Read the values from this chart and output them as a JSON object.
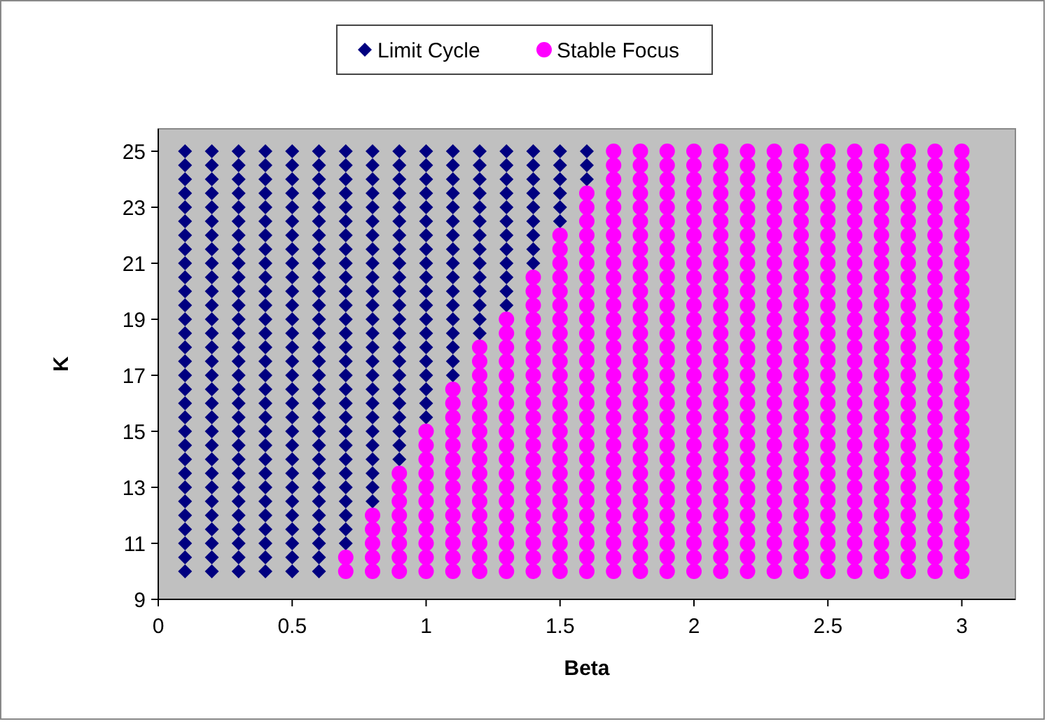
{
  "chart_data": {
    "type": "scatter",
    "xlabel": "Beta",
    "ylabel": "K",
    "xlim": [
      0,
      3.2
    ],
    "xticks": [
      0,
      0.5,
      1,
      1.5,
      2,
      2.5,
      3
    ],
    "ylim": [
      9,
      25.8
    ],
    "yticks": [
      9,
      11,
      13,
      15,
      17,
      19,
      21,
      23,
      25
    ],
    "grid": false,
    "legend": "top",
    "series": [
      {
        "name": "Limit Cycle",
        "color": "#000080",
        "marker": "diamond",
        "x": [
          0.1,
          0.1,
          0.1,
          0.1,
          0.1,
          0.1,
          0.1,
          0.1,
          0.1,
          0.1,
          0.1,
          0.1,
          0.1,
          0.1,
          0.1,
          0.1,
          0.1,
          0.1,
          0.1,
          0.1,
          0.1,
          0.1,
          0.1,
          0.1,
          0.1,
          0.1,
          0.1,
          0.1,
          0.1,
          0.1,
          0.1,
          0.2,
          0.2,
          0.2,
          0.2,
          0.2,
          0.2,
          0.2,
          0.2,
          0.2,
          0.2,
          0.2,
          0.2,
          0.2,
          0.2,
          0.2,
          0.2,
          0.2,
          0.2,
          0.2,
          0.2,
          0.2,
          0.2,
          0.2,
          0.2,
          0.2,
          0.2,
          0.2,
          0.2,
          0.2,
          0.2,
          0.2,
          0.3,
          0.3,
          0.3,
          0.3,
          0.3,
          0.3,
          0.3,
          0.3,
          0.3,
          0.3,
          0.3,
          0.3,
          0.3,
          0.3,
          0.3,
          0.3,
          0.3,
          0.3,
          0.3,
          0.3,
          0.3,
          0.3,
          0.3,
          0.3,
          0.3,
          0.3,
          0.3,
          0.3,
          0.3,
          0.3,
          0.3,
          0.4,
          0.4,
          0.4,
          0.4,
          0.4,
          0.4,
          0.4,
          0.4,
          0.4,
          0.4,
          0.4,
          0.4,
          0.4,
          0.4,
          0.4,
          0.4,
          0.4,
          0.4,
          0.4,
          0.4,
          0.4,
          0.4,
          0.4,
          0.4,
          0.4,
          0.4,
          0.4,
          0.4,
          0.4,
          0.4,
          0.4,
          0.5,
          0.5,
          0.5,
          0.5,
          0.5,
          0.5,
          0.5,
          0.5,
          0.5,
          0.5,
          0.5,
          0.5,
          0.5,
          0.5,
          0.5,
          0.5,
          0.5,
          0.5,
          0.5,
          0.5,
          0.5,
          0.5,
          0.5,
          0.5,
          0.5,
          0.5,
          0.5,
          0.5,
          0.5,
          0.5,
          0.5,
          0.6,
          0.6,
          0.6,
          0.6,
          0.6,
          0.6,
          0.6,
          0.6,
          0.6,
          0.6,
          0.6,
          0.6,
          0.6,
          0.6,
          0.6,
          0.6,
          0.6,
          0.6,
          0.6,
          0.6,
          0.6,
          0.6,
          0.6,
          0.6,
          0.6,
          0.6,
          0.6,
          0.6,
          0.6,
          0.6,
          0.6,
          0.7,
          0.7,
          0.7,
          0.7,
          0.7,
          0.7,
          0.7,
          0.7,
          0.7,
          0.7,
          0.7,
          0.7,
          0.7,
          0.7,
          0.7,
          0.7,
          0.7,
          0.7,
          0.7,
          0.7,
          0.7,
          0.7,
          0.7,
          0.7,
          0.7,
          0.7,
          0.7,
          0.7,
          0.7,
          0.8,
          0.8,
          0.8,
          0.8,
          0.8,
          0.8,
          0.8,
          0.8,
          0.8,
          0.8,
          0.8,
          0.8,
          0.8,
          0.8,
          0.8,
          0.8,
          0.8,
          0.8,
          0.8,
          0.8,
          0.8,
          0.8,
          0.8,
          0.8,
          0.8,
          0.8,
          0.9,
          0.9,
          0.9,
          0.9,
          0.9,
          0.9,
          0.9,
          0.9,
          0.9,
          0.9,
          0.9,
          0.9,
          0.9,
          0.9,
          0.9,
          0.9,
          0.9,
          0.9,
          0.9,
          0.9,
          0.9,
          0.9,
          0.9,
          1,
          1,
          1,
          1,
          1,
          1,
          1,
          1,
          1,
          1,
          1,
          1,
          1,
          1,
          1,
          1,
          1,
          1,
          1,
          1,
          1.1,
          1.1,
          1.1,
          1.1,
          1.1,
          1.1,
          1.1,
          1.1,
          1.1,
          1.1,
          1.1,
          1.1,
          1.1,
          1.1,
          1.1,
          1.1,
          1.1,
          1.2,
          1.2,
          1.2,
          1.2,
          1.2,
          1.2,
          1.2,
          1.2,
          1.2,
          1.2,
          1.2,
          1.2,
          1.2,
          1.2,
          1.3,
          1.3,
          1.3,
          1.3,
          1.3,
          1.3,
          1.3,
          1.3,
          1.3,
          1.3,
          1.3,
          1.3,
          1.4,
          1.4,
          1.4,
          1.4,
          1.4,
          1.4,
          1.4,
          1.4,
          1.4,
          1.5,
          1.5,
          1.5,
          1.5,
          1.5,
          1.5,
          1.6,
          1.6,
          1.6
        ],
        "values": [
          10,
          10.5,
          11,
          11.5,
          12,
          12.5,
          13,
          13.5,
          14,
          14.5,
          15,
          15.5,
          16,
          16.5,
          17,
          17.5,
          18,
          18.5,
          19,
          19.5,
          20,
          20.5,
          21,
          21.5,
          22,
          22.5,
          23,
          23.5,
          24,
          24.5,
          25,
          10,
          10.5,
          11,
          11.5,
          12,
          12.5,
          13,
          13.5,
          14,
          14.5,
          15,
          15.5,
          16,
          16.5,
          17,
          17.5,
          18,
          18.5,
          19,
          19.5,
          20,
          20.5,
          21,
          21.5,
          22,
          22.5,
          23,
          23.5,
          24,
          24.5,
          25,
          10,
          10.5,
          11,
          11.5,
          12,
          12.5,
          13,
          13.5,
          14,
          14.5,
          15,
          15.5,
          16,
          16.5,
          17,
          17.5,
          18,
          18.5,
          19,
          19.5,
          20,
          20.5,
          21,
          21.5,
          22,
          22.5,
          23,
          23.5,
          24,
          24.5,
          25,
          10,
          10.5,
          11,
          11.5,
          12,
          12.5,
          13,
          13.5,
          14,
          14.5,
          15,
          15.5,
          16,
          16.5,
          17,
          17.5,
          18,
          18.5,
          19,
          19.5,
          20,
          20.5,
          21,
          21.5,
          22,
          22.5,
          23,
          23.5,
          24,
          24.5,
          25,
          10,
          10.5,
          11,
          11.5,
          12,
          12.5,
          13,
          13.5,
          14,
          14.5,
          15,
          15.5,
          16,
          16.5,
          17,
          17.5,
          18,
          18.5,
          19,
          19.5,
          20,
          20.5,
          21,
          21.5,
          22,
          22.5,
          23,
          23.5,
          24,
          24.5,
          25,
          10,
          10.5,
          11,
          11.5,
          12,
          12.5,
          13,
          13.5,
          14,
          14.5,
          15,
          15.5,
          16,
          16.5,
          17,
          17.5,
          18,
          18.5,
          19,
          19.5,
          20,
          20.5,
          21,
          21.5,
          22,
          22.5,
          23,
          23.5,
          24,
          24.5,
          25,
          11,
          11.5,
          12,
          12.5,
          13,
          13.5,
          14,
          14.5,
          15,
          15.5,
          16,
          16.5,
          17,
          17.5,
          18,
          18.5,
          19,
          19.5,
          20,
          20.5,
          21,
          21.5,
          22,
          22.5,
          23,
          23.5,
          24,
          24.5,
          25,
          12.5,
          13,
          13.5,
          14,
          14.5,
          15,
          15.5,
          16,
          16.5,
          17,
          17.5,
          18,
          18.5,
          19,
          19.5,
          20,
          20.5,
          21,
          21.5,
          22,
          22.5,
          23,
          23.5,
          24,
          24.5,
          25,
          14,
          14.5,
          15,
          15.5,
          16,
          16.5,
          17,
          17.5,
          18,
          18.5,
          19,
          19.5,
          20,
          20.5,
          21,
          21.5,
          22,
          22.5,
          23,
          23.5,
          24,
          24.5,
          25,
          15.5,
          16,
          16.5,
          17,
          17.5,
          18,
          18.5,
          19,
          19.5,
          20,
          20.5,
          21,
          21.5,
          22,
          22.5,
          23,
          23.5,
          24,
          24.5,
          25,
          17,
          17.5,
          18,
          18.5,
          19,
          19.5,
          20,
          20.5,
          21,
          21.5,
          22,
          22.5,
          23,
          23.5,
          24,
          24.5,
          25,
          18.5,
          19,
          19.5,
          20,
          20.5,
          21,
          21.5,
          22,
          22.5,
          23,
          23.5,
          24,
          24.5,
          25,
          19.5,
          20,
          20.5,
          21,
          21.5,
          22,
          22.5,
          23,
          23.5,
          24,
          24.5,
          25,
          21,
          21.5,
          22,
          22.5,
          23,
          23.5,
          24,
          24.5,
          25,
          22.5,
          23,
          23.5,
          24,
          24.5,
          25,
          24,
          24.5,
          25
        ]
      },
      {
        "name": "Stable Focus",
        "color": "#ff00ff",
        "marker": "circle",
        "x": [
          0.7,
          0.7,
          0.8,
          0.8,
          0.8,
          0.8,
          0.8,
          0.9,
          0.9,
          0.9,
          0.9,
          0.9,
          0.9,
          0.9,
          0.9,
          1,
          1,
          1,
          1,
          1,
          1,
          1,
          1,
          1,
          1,
          1,
          1.1,
          1.1,
          1.1,
          1.1,
          1.1,
          1.1,
          1.1,
          1.1,
          1.1,
          1.1,
          1.1,
          1.1,
          1.1,
          1.1,
          1.2,
          1.2,
          1.2,
          1.2,
          1.2,
          1.2,
          1.2,
          1.2,
          1.2,
          1.2,
          1.2,
          1.2,
          1.2,
          1.2,
          1.2,
          1.2,
          1.2,
          1.3,
          1.3,
          1.3,
          1.3,
          1.3,
          1.3,
          1.3,
          1.3,
          1.3,
          1.3,
          1.3,
          1.3,
          1.3,
          1.3,
          1.3,
          1.3,
          1.3,
          1.3,
          1.3,
          1.4,
          1.4,
          1.4,
          1.4,
          1.4,
          1.4,
          1.4,
          1.4,
          1.4,
          1.4,
          1.4,
          1.4,
          1.4,
          1.4,
          1.4,
          1.4,
          1.4,
          1.4,
          1.4,
          1.4,
          1.4,
          1.4,
          1.5,
          1.5,
          1.5,
          1.5,
          1.5,
          1.5,
          1.5,
          1.5,
          1.5,
          1.5,
          1.5,
          1.5,
          1.5,
          1.5,
          1.5,
          1.5,
          1.5,
          1.5,
          1.5,
          1.5,
          1.5,
          1.5,
          1.5,
          1.5,
          1.5,
          1.6,
          1.6,
          1.6,
          1.6,
          1.6,
          1.6,
          1.6,
          1.6,
          1.6,
          1.6,
          1.6,
          1.6,
          1.6,
          1.6,
          1.6,
          1.6,
          1.6,
          1.6,
          1.6,
          1.6,
          1.6,
          1.6,
          1.6,
          1.6,
          1.6,
          1.6,
          1.6,
          1.6,
          1.7,
          1.7,
          1.7,
          1.7,
          1.7,
          1.7,
          1.7,
          1.7,
          1.7,
          1.7,
          1.7,
          1.7,
          1.7,
          1.7,
          1.7,
          1.7,
          1.7,
          1.7,
          1.7,
          1.7,
          1.7,
          1.7,
          1.7,
          1.7,
          1.7,
          1.7,
          1.7,
          1.7,
          1.7,
          1.7,
          1.7,
          1.8,
          1.8,
          1.8,
          1.8,
          1.8,
          1.8,
          1.8,
          1.8,
          1.8,
          1.8,
          1.8,
          1.8,
          1.8,
          1.8,
          1.8,
          1.8,
          1.8,
          1.8,
          1.8,
          1.8,
          1.8,
          1.8,
          1.8,
          1.8,
          1.8,
          1.8,
          1.8,
          1.8,
          1.8,
          1.8,
          1.8,
          1.9,
          1.9,
          1.9,
          1.9,
          1.9,
          1.9,
          1.9,
          1.9,
          1.9,
          1.9,
          1.9,
          1.9,
          1.9,
          1.9,
          1.9,
          1.9,
          1.9,
          1.9,
          1.9,
          1.9,
          1.9,
          1.9,
          1.9,
          1.9,
          1.9,
          1.9,
          1.9,
          1.9,
          1.9,
          1.9,
          1.9,
          2,
          2,
          2,
          2,
          2,
          2,
          2,
          2,
          2,
          2,
          2,
          2,
          2,
          2,
          2,
          2,
          2,
          2,
          2,
          2,
          2,
          2,
          2,
          2,
          2,
          2,
          2,
          2,
          2,
          2,
          2,
          2.1,
          2.1,
          2.1,
          2.1,
          2.1,
          2.1,
          2.1,
          2.1,
          2.1,
          2.1,
          2.1,
          2.1,
          2.1,
          2.1,
          2.1,
          2.1,
          2.1,
          2.1,
          2.1,
          2.1,
          2.1,
          2.1,
          2.1,
          2.1,
          2.1,
          2.1,
          2.1,
          2.1,
          2.1,
          2.1,
          2.1,
          2.2,
          2.2,
          2.2,
          2.2,
          2.2,
          2.2,
          2.2,
          2.2,
          2.2,
          2.2,
          2.2,
          2.2,
          2.2,
          2.2,
          2.2,
          2.2,
          2.2,
          2.2,
          2.2,
          2.2,
          2.2,
          2.2,
          2.2,
          2.2,
          2.2,
          2.2,
          2.2,
          2.2,
          2.2,
          2.2,
          2.2,
          2.3,
          2.3,
          2.3,
          2.3,
          2.3,
          2.3,
          2.3,
          2.3,
          2.3,
          2.3,
          2.3,
          2.3,
          2.3,
          2.3,
          2.3,
          2.3,
          2.3,
          2.3,
          2.3,
          2.3,
          2.3,
          2.3,
          2.3,
          2.3,
          2.3,
          2.3,
          2.3,
          2.3,
          2.3,
          2.3,
          2.3,
          2.4,
          2.4,
          2.4,
          2.4,
          2.4,
          2.4,
          2.4,
          2.4,
          2.4,
          2.4,
          2.4,
          2.4,
          2.4,
          2.4,
          2.4,
          2.4,
          2.4,
          2.4,
          2.4,
          2.4,
          2.4,
          2.4,
          2.4,
          2.4,
          2.4,
          2.4,
          2.4,
          2.4,
          2.4,
          2.4,
          2.4,
          2.5,
          2.5,
          2.5,
          2.5,
          2.5,
          2.5,
          2.5,
          2.5,
          2.5,
          2.5,
          2.5,
          2.5,
          2.5,
          2.5,
          2.5,
          2.5,
          2.5,
          2.5,
          2.5,
          2.5,
          2.5,
          2.5,
          2.5,
          2.5,
          2.5,
          2.5,
          2.5,
          2.5,
          2.5,
          2.5,
          2.5,
          2.6,
          2.6,
          2.6,
          2.6,
          2.6,
          2.6,
          2.6,
          2.6,
          2.6,
          2.6,
          2.6,
          2.6,
          2.6,
          2.6,
          2.6,
          2.6,
          2.6,
          2.6,
          2.6,
          2.6,
          2.6,
          2.6,
          2.6,
          2.6,
          2.6,
          2.6,
          2.6,
          2.6,
          2.6,
          2.6,
          2.6,
          2.7,
          2.7,
          2.7,
          2.7,
          2.7,
          2.7,
          2.7,
          2.7,
          2.7,
          2.7,
          2.7,
          2.7,
          2.7,
          2.7,
          2.7,
          2.7,
          2.7,
          2.7,
          2.7,
          2.7,
          2.7,
          2.7,
          2.7,
          2.7,
          2.7,
          2.7,
          2.7,
          2.7,
          2.7,
          2.7,
          2.7,
          2.8,
          2.8,
          2.8,
          2.8,
          2.8,
          2.8,
          2.8,
          2.8,
          2.8,
          2.8,
          2.8,
          2.8,
          2.8,
          2.8,
          2.8,
          2.8,
          2.8,
          2.8,
          2.8,
          2.8,
          2.8,
          2.8,
          2.8,
          2.8,
          2.8,
          2.8,
          2.8,
          2.8,
          2.8,
          2.8,
          2.8,
          2.9,
          2.9,
          2.9,
          2.9,
          2.9,
          2.9,
          2.9,
          2.9,
          2.9,
          2.9,
          2.9,
          2.9,
          2.9,
          2.9,
          2.9,
          2.9,
          2.9,
          2.9,
          2.9,
          2.9,
          2.9,
          2.9,
          2.9,
          2.9,
          2.9,
          2.9,
          2.9,
          2.9,
          2.9,
          2.9,
          2.9,
          3,
          3,
          3,
          3,
          3,
          3,
          3,
          3,
          3,
          3,
          3,
          3,
          3,
          3,
          3,
          3,
          3,
          3,
          3,
          3,
          3,
          3,
          3,
          3,
          3,
          3,
          3,
          3,
          3,
          3,
          3
        ],
        "values": [
          10,
          10.5,
          10,
          10.5,
          11,
          11.5,
          12,
          10,
          10.5,
          11,
          11.5,
          12,
          12.5,
          13,
          13.5,
          10,
          10.5,
          11,
          11.5,
          12,
          12.5,
          13,
          13.5,
          14,
          14.5,
          15,
          10,
          10.5,
          11,
          11.5,
          12,
          12.5,
          13,
          13.5,
          14,
          14.5,
          15,
          15.5,
          16,
          16.5,
          10,
          10.5,
          11,
          11.5,
          12,
          12.5,
          13,
          13.5,
          14,
          14.5,
          15,
          15.5,
          16,
          16.5,
          17,
          17.5,
          18,
          10,
          10.5,
          11,
          11.5,
          12,
          12.5,
          13,
          13.5,
          14,
          14.5,
          15,
          15.5,
          16,
          16.5,
          17,
          17.5,
          18,
          18.5,
          19,
          10,
          10.5,
          11,
          11.5,
          12,
          12.5,
          13,
          13.5,
          14,
          14.5,
          15,
          15.5,
          16,
          16.5,
          17,
          17.5,
          18,
          18.5,
          19,
          19.5,
          20,
          20.5,
          10,
          10.5,
          11,
          11.5,
          12,
          12.5,
          13,
          13.5,
          14,
          14.5,
          15,
          15.5,
          16,
          16.5,
          17,
          17.5,
          18,
          18.5,
          19,
          19.5,
          20,
          20.5,
          21,
          21.5,
          22,
          10,
          10.5,
          11,
          11.5,
          12,
          12.5,
          13,
          13.5,
          14,
          14.5,
          15,
          15.5,
          16,
          16.5,
          17,
          17.5,
          18,
          18.5,
          19,
          19.5,
          20,
          20.5,
          21,
          21.5,
          22,
          22.5,
          23,
          23.5,
          10,
          10.5,
          11,
          11.5,
          12,
          12.5,
          13,
          13.5,
          14,
          14.5,
          15,
          15.5,
          16,
          16.5,
          17,
          17.5,
          18,
          18.5,
          19,
          19.5,
          20,
          20.5,
          21,
          21.5,
          22,
          22.5,
          23,
          23.5,
          24,
          24.5,
          25,
          10,
          10.5,
          11,
          11.5,
          12,
          12.5,
          13,
          13.5,
          14,
          14.5,
          15,
          15.5,
          16,
          16.5,
          17,
          17.5,
          18,
          18.5,
          19,
          19.5,
          20,
          20.5,
          21,
          21.5,
          22,
          22.5,
          23,
          23.5,
          24,
          24.5,
          25,
          10,
          10.5,
          11,
          11.5,
          12,
          12.5,
          13,
          13.5,
          14,
          14.5,
          15,
          15.5,
          16,
          16.5,
          17,
          17.5,
          18,
          18.5,
          19,
          19.5,
          20,
          20.5,
          21,
          21.5,
          22,
          22.5,
          23,
          23.5,
          24,
          24.5,
          25,
          10,
          10.5,
          11,
          11.5,
          12,
          12.5,
          13,
          13.5,
          14,
          14.5,
          15,
          15.5,
          16,
          16.5,
          17,
          17.5,
          18,
          18.5,
          19,
          19.5,
          20,
          20.5,
          21,
          21.5,
          22,
          22.5,
          23,
          23.5,
          24,
          24.5,
          25,
          10,
          10.5,
          11,
          11.5,
          12,
          12.5,
          13,
          13.5,
          14,
          14.5,
          15,
          15.5,
          16,
          16.5,
          17,
          17.5,
          18,
          18.5,
          19,
          19.5,
          20,
          20.5,
          21,
          21.5,
          22,
          22.5,
          23,
          23.5,
          24,
          24.5,
          25,
          10,
          10.5,
          11,
          11.5,
          12,
          12.5,
          13,
          13.5,
          14,
          14.5,
          15,
          15.5,
          16,
          16.5,
          17,
          17.5,
          18,
          18.5,
          19,
          19.5,
          20,
          20.5,
          21,
          21.5,
          22,
          22.5,
          23,
          23.5,
          24,
          24.5,
          25,
          10,
          10.5,
          11,
          11.5,
          12,
          12.5,
          13,
          13.5,
          14,
          14.5,
          15,
          15.5,
          16,
          16.5,
          17,
          17.5,
          18,
          18.5,
          19,
          19.5,
          20,
          20.5,
          21,
          21.5,
          22,
          22.5,
          23,
          23.5,
          24,
          24.5,
          25,
          10,
          10.5,
          11,
          11.5,
          12,
          12.5,
          13,
          13.5,
          14,
          14.5,
          15,
          15.5,
          16,
          16.5,
          17,
          17.5,
          18,
          18.5,
          19,
          19.5,
          20,
          20.5,
          21,
          21.5,
          22,
          22.5,
          23,
          23.5,
          24,
          24.5,
          25,
          10,
          10.5,
          11,
          11.5,
          12,
          12.5,
          13,
          13.5,
          14,
          14.5,
          15,
          15.5,
          16,
          16.5,
          17,
          17.5,
          18,
          18.5,
          19,
          19.5,
          20,
          20.5,
          21,
          21.5,
          22,
          22.5,
          23,
          23.5,
          24,
          24.5,
          25,
          10,
          10.5,
          11,
          11.5,
          12,
          12.5,
          13,
          13.5,
          14,
          14.5,
          15,
          15.5,
          16,
          16.5,
          17,
          17.5,
          18,
          18.5,
          19,
          19.5,
          20,
          20.5,
          21,
          21.5,
          22,
          22.5,
          23,
          23.5,
          24,
          24.5,
          25,
          10,
          10.5,
          11,
          11.5,
          12,
          12.5,
          13,
          13.5,
          14,
          14.5,
          15,
          15.5,
          16,
          16.5,
          17,
          17.5,
          18,
          18.5,
          19,
          19.5,
          20,
          20.5,
          21,
          21.5,
          22,
          22.5,
          23,
          23.5,
          24,
          24.5,
          25,
          10,
          10.5,
          11,
          11.5,
          12,
          12.5,
          13,
          13.5,
          14,
          14.5,
          15,
          15.5,
          16,
          16.5,
          17,
          17.5,
          18,
          18.5,
          19,
          19.5,
          20,
          20.5,
          21,
          21.5,
          22,
          22.5,
          23,
          23.5,
          24,
          24.5,
          25,
          10,
          10.5,
          11,
          11.5,
          12,
          12.5,
          13,
          13.5,
          14,
          14.5,
          15,
          15.5,
          16,
          16.5,
          17,
          17.5,
          18,
          18.5,
          19,
          19.5,
          20,
          20.5,
          21,
          21.5,
          22,
          22.5,
          23,
          23.5,
          24,
          24.5,
          25,
          10,
          10.5,
          11,
          11.5,
          12,
          12.5,
          13,
          13.5,
          14,
          14.5,
          15,
          15.5,
          16,
          16.5,
          17,
          17.5,
          18,
          18.5,
          19,
          19.5,
          20,
          20.5,
          21,
          21.5,
          22,
          22.5,
          23,
          23.5,
          24,
          24.5,
          25
        ]
      }
    ]
  }
}
